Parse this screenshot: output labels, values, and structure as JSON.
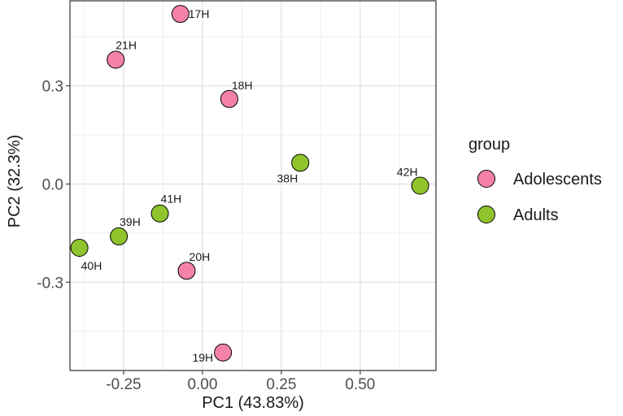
{
  "chart_data": {
    "type": "scatter",
    "xlabel": "PC1 (43.83%)",
    "ylabel": "PC2 (32.3%)",
    "xlim": [
      -0.42,
      0.74
    ],
    "ylim": [
      -0.57,
      0.56
    ],
    "x_ticks": [
      -0.25,
      0.0,
      0.25,
      0.5
    ],
    "x_tick_labels": [
      "-0.25",
      "0.00",
      "0.25",
      "0.50"
    ],
    "y_ticks": [
      -0.3,
      0.0,
      0.3
    ],
    "y_tick_labels": [
      "-0.3",
      "0.0",
      "0.3"
    ],
    "grid": true,
    "legend": {
      "title": "group",
      "position": "right",
      "entries": [
        {
          "name": "Adolescents",
          "color": "#f482a8"
        },
        {
          "name": "Adults",
          "color": "#8fc42d"
        }
      ]
    },
    "points": [
      {
        "label": "17H",
        "group": "Adolescents",
        "x": -0.07,
        "y": 0.52
      },
      {
        "label": "21H",
        "group": "Adolescents",
        "x": -0.275,
        "y": 0.38
      },
      {
        "label": "18H",
        "group": "Adolescents",
        "x": 0.085,
        "y": 0.26
      },
      {
        "label": "20H",
        "group": "Adolescents",
        "x": -0.05,
        "y": -0.265
      },
      {
        "label": "19H",
        "group": "Adolescents",
        "x": 0.065,
        "y": -0.515
      },
      {
        "label": "38H",
        "group": "Adults",
        "x": 0.31,
        "y": 0.065
      },
      {
        "label": "42H",
        "group": "Adults",
        "x": 0.69,
        "y": -0.005
      },
      {
        "label": "41H",
        "group": "Adults",
        "x": -0.135,
        "y": -0.09
      },
      {
        "label": "39H",
        "group": "Adults",
        "x": -0.265,
        "y": -0.16
      },
      {
        "label": "40H",
        "group": "Adults",
        "x": -0.39,
        "y": -0.195
      }
    ]
  }
}
